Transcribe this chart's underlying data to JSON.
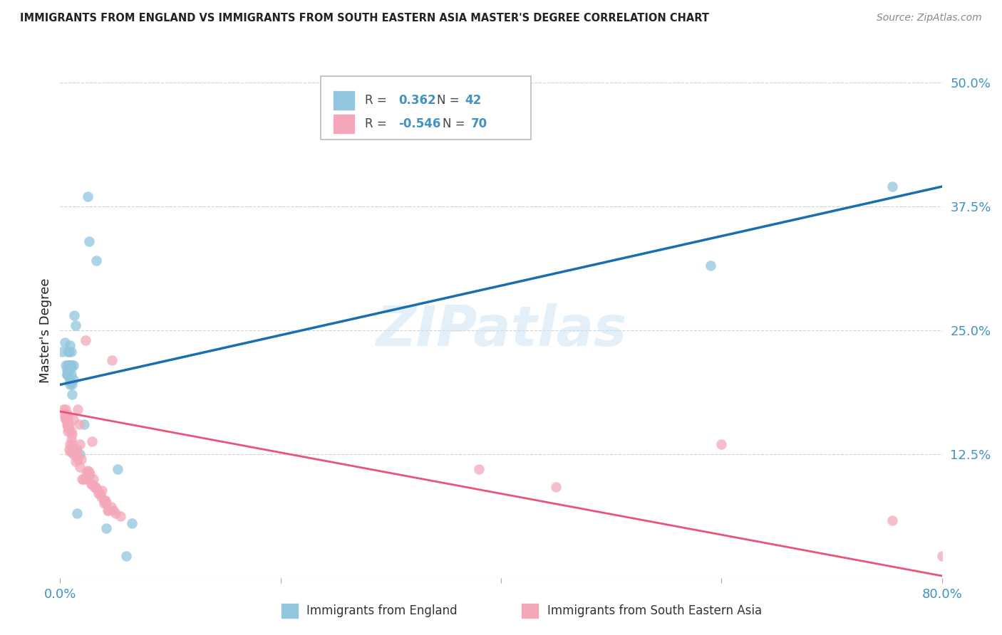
{
  "title": "IMMIGRANTS FROM ENGLAND VS IMMIGRANTS FROM SOUTH EASTERN ASIA MASTER'S DEGREE CORRELATION CHART",
  "source": "Source: ZipAtlas.com",
  "ylabel": "Master's Degree",
  "watermark": "ZIPatlas",
  "xlim": [
    0.0,
    0.8
  ],
  "ylim": [
    0.0,
    0.5
  ],
  "yticks": [
    0.0,
    0.125,
    0.25,
    0.375,
    0.5
  ],
  "ytick_labels": [
    "",
    "12.5%",
    "25.0%",
    "37.5%",
    "50.0%"
  ],
  "xticks": [
    0.0,
    0.2,
    0.4,
    0.6,
    0.8
  ],
  "legend_label1": "Immigrants from England",
  "legend_label2": "Immigrants from South Eastern Asia",
  "color_blue": "#92c5de",
  "color_pink": "#f4a7b9",
  "line_blue": "#1a6faf",
  "line_pink": "#e8547a",
  "title_color": "#222222",
  "ytick_color": "#4292c6",
  "xtick_color": "#4292c6",
  "background": "#ffffff",
  "grid_color": "#cccccc",
  "blue_scatter": [
    [
      0.002,
      0.228
    ],
    [
      0.004,
      0.238
    ],
    [
      0.005,
      0.215
    ],
    [
      0.006,
      0.21
    ],
    [
      0.006,
      0.205
    ],
    [
      0.006,
      0.205
    ],
    [
      0.007,
      0.228
    ],
    [
      0.007,
      0.215
    ],
    [
      0.007,
      0.212
    ],
    [
      0.007,
      0.208
    ],
    [
      0.008,
      0.228
    ],
    [
      0.008,
      0.215
    ],
    [
      0.008,
      0.215
    ],
    [
      0.008,
      0.21
    ],
    [
      0.009,
      0.235
    ],
    [
      0.009,
      0.215
    ],
    [
      0.009,
      0.2
    ],
    [
      0.009,
      0.198
    ],
    [
      0.009,
      0.215
    ],
    [
      0.009,
      0.195
    ],
    [
      0.01,
      0.215
    ],
    [
      0.01,
      0.212
    ],
    [
      0.01,
      0.205
    ],
    [
      0.01,
      0.228
    ],
    [
      0.011,
      0.195
    ],
    [
      0.011,
      0.185
    ],
    [
      0.012,
      0.215
    ],
    [
      0.012,
      0.2
    ],
    [
      0.013,
      0.265
    ],
    [
      0.014,
      0.255
    ],
    [
      0.015,
      0.065
    ],
    [
      0.018,
      0.125
    ],
    [
      0.022,
      0.155
    ],
    [
      0.025,
      0.385
    ],
    [
      0.026,
      0.34
    ],
    [
      0.033,
      0.32
    ],
    [
      0.042,
      0.05
    ],
    [
      0.052,
      0.11
    ],
    [
      0.06,
      0.022
    ],
    [
      0.065,
      0.055
    ],
    [
      0.59,
      0.315
    ],
    [
      0.755,
      0.395
    ]
  ],
  "pink_scatter": [
    [
      0.003,
      0.17
    ],
    [
      0.004,
      0.165
    ],
    [
      0.004,
      0.162
    ],
    [
      0.005,
      0.17
    ],
    [
      0.005,
      0.165
    ],
    [
      0.005,
      0.16
    ],
    [
      0.006,
      0.162
    ],
    [
      0.006,
      0.158
    ],
    [
      0.006,
      0.155
    ],
    [
      0.007,
      0.165
    ],
    [
      0.007,
      0.162
    ],
    [
      0.007,
      0.155
    ],
    [
      0.007,
      0.152
    ],
    [
      0.007,
      0.148
    ],
    [
      0.008,
      0.155
    ],
    [
      0.008,
      0.15
    ],
    [
      0.008,
      0.13
    ],
    [
      0.009,
      0.135
    ],
    [
      0.009,
      0.128
    ],
    [
      0.01,
      0.148
    ],
    [
      0.01,
      0.14
    ],
    [
      0.01,
      0.128
    ],
    [
      0.011,
      0.145
    ],
    [
      0.011,
      0.135
    ],
    [
      0.012,
      0.16
    ],
    [
      0.012,
      0.13
    ],
    [
      0.012,
      0.125
    ],
    [
      0.013,
      0.128
    ],
    [
      0.013,
      0.125
    ],
    [
      0.014,
      0.118
    ],
    [
      0.015,
      0.13
    ],
    [
      0.015,
      0.125
    ],
    [
      0.016,
      0.12
    ],
    [
      0.016,
      0.17
    ],
    [
      0.017,
      0.155
    ],
    [
      0.018,
      0.135
    ],
    [
      0.018,
      0.112
    ],
    [
      0.019,
      0.12
    ],
    [
      0.02,
      0.1
    ],
    [
      0.021,
      0.1
    ],
    [
      0.023,
      0.24
    ],
    [
      0.024,
      0.1
    ],
    [
      0.024,
      0.107
    ],
    [
      0.025,
      0.108
    ],
    [
      0.026,
      0.107
    ],
    [
      0.027,
      0.105
    ],
    [
      0.028,
      0.095
    ],
    [
      0.029,
      0.138
    ],
    [
      0.029,
      0.095
    ],
    [
      0.03,
      0.1
    ],
    [
      0.031,
      0.092
    ],
    [
      0.032,
      0.092
    ],
    [
      0.033,
      0.09
    ],
    [
      0.035,
      0.085
    ],
    [
      0.036,
      0.085
    ],
    [
      0.037,
      0.082
    ],
    [
      0.038,
      0.088
    ],
    [
      0.04,
      0.078
    ],
    [
      0.04,
      0.075
    ],
    [
      0.041,
      0.078
    ],
    [
      0.042,
      0.075
    ],
    [
      0.043,
      0.068
    ],
    [
      0.044,
      0.068
    ],
    [
      0.046,
      0.072
    ],
    [
      0.047,
      0.22
    ],
    [
      0.048,
      0.068
    ],
    [
      0.05,
      0.065
    ],
    [
      0.055,
      0.062
    ],
    [
      0.38,
      0.11
    ],
    [
      0.45,
      0.092
    ],
    [
      0.6,
      0.135
    ],
    [
      0.755,
      0.058
    ],
    [
      0.8,
      0.022
    ]
  ],
  "blue_line_x": [
    0.0,
    0.8
  ],
  "blue_line_y": [
    0.195,
    0.395
  ],
  "pink_line_x": [
    0.0,
    0.8
  ],
  "pink_line_y": [
    0.168,
    0.002
  ]
}
